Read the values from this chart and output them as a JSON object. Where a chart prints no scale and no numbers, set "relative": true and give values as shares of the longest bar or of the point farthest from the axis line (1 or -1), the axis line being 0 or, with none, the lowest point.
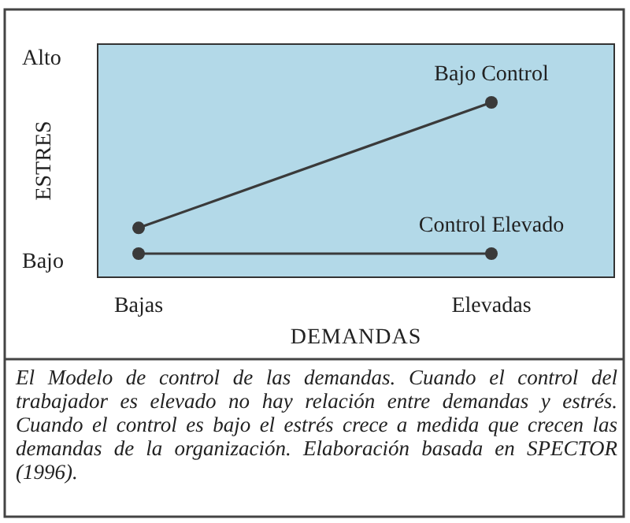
{
  "chart_data": {
    "type": "line",
    "relative": true,
    "xlabel": "DEMANDAS",
    "ylabel": "ESTRES",
    "categories": [
      "Bajas",
      "Elevadas"
    ],
    "marker": "circle",
    "line_style": "solid",
    "legend": false,
    "series": [
      {
        "name": "Bajo Control",
        "color": "#3a3a3a",
        "values": [
          0.17,
          1
        ]
      },
      {
        "name": "Control Elevado",
        "color": "#3a3a3a",
        "values": [
          0,
          0
        ]
      }
    ],
    "annotations": [
      "Alto",
      "Bajo",
      "El Modelo de control de las demandas. Cuando el control del trabajador es elevado no hay relación entre demandas y estrés. Cuando el control es bajo el estrés crece a medida que crecen las demandas de la organización. Elaboración basada en SPECTOR (1996)."
    ]
  }
}
